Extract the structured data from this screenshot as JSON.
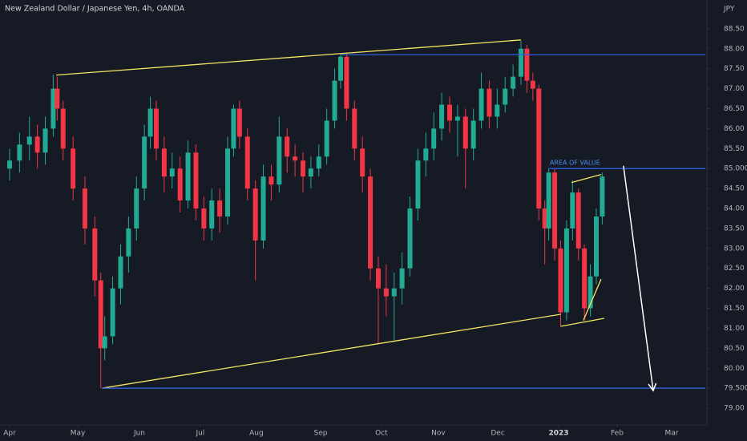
{
  "chart_data": {
    "type": "candlestick",
    "title": "New Zealand Dollar / Japanese Yen, 4h, OANDA",
    "currency": "JPY",
    "up_color": "#22ab94",
    "down_color": "#f23645",
    "xlim": [
      -4.85,
      351
    ],
    "ylim": [
      78.58,
      89.22
    ],
    "xticks": [
      {
        "value": 0,
        "label": "Apr"
      },
      {
        "value": 34.4,
        "label": "May"
      },
      {
        "value": 65.5,
        "label": "Jun"
      },
      {
        "value": 96.2,
        "label": "Jul"
      },
      {
        "value": 124.5,
        "label": "Aug"
      },
      {
        "value": 156.9,
        "label": "Sep"
      },
      {
        "value": 187.6,
        "label": "Oct"
      },
      {
        "value": 216.3,
        "label": "Nov"
      },
      {
        "value": 246.3,
        "label": "Dec"
      },
      {
        "value": 277,
        "label": "2023"
      },
      {
        "value": 306.5,
        "label": "Feb"
      },
      {
        "value": 334,
        "label": "Mar"
      }
    ],
    "yticks": [
      {
        "value": 79,
        "label": "79.00"
      },
      {
        "value": 79.5,
        "label": "79.500"
      },
      {
        "value": 80,
        "label": "80.00"
      },
      {
        "value": 80.5,
        "label": "80.50"
      },
      {
        "value": 81,
        "label": "81.00"
      },
      {
        "value": 81.5,
        "label": "81.50"
      },
      {
        "value": 82,
        "label": "82.00"
      },
      {
        "value": 82.5,
        "label": "82.50"
      },
      {
        "value": 83,
        "label": "83.00"
      },
      {
        "value": 83.5,
        "label": "83.50"
      },
      {
        "value": 84,
        "label": "84.00"
      },
      {
        "value": 84.5,
        "label": "84.50"
      },
      {
        "value": 85,
        "label": "85.000"
      },
      {
        "value": 85.5,
        "label": "85.50"
      },
      {
        "value": 86,
        "label": "86.00"
      },
      {
        "value": 86.5,
        "label": "86.50"
      },
      {
        "value": 87,
        "label": "87.00"
      },
      {
        "value": 87.5,
        "label": "87.50"
      },
      {
        "value": 88,
        "label": "88.00"
      },
      {
        "value": 88.5,
        "label": "88.50"
      }
    ],
    "x": [
      0,
      5,
      10,
      14,
      18,
      22,
      24,
      27,
      32,
      38,
      43,
      46,
      48,
      52,
      56,
      60,
      64,
      68,
      71,
      74,
      78,
      82,
      86,
      90,
      94,
      98,
      102,
      106,
      110,
      113,
      116,
      120,
      124,
      128,
      132,
      136,
      140,
      144,
      148,
      152,
      156,
      160,
      164,
      167,
      170,
      174,
      178,
      182,
      186,
      190,
      194,
      198,
      202,
      206,
      210,
      214,
      218,
      222,
      226,
      230,
      234,
      238,
      242,
      246,
      250,
      254,
      258,
      261,
      264,
      267,
      270,
      272,
      275,
      278,
      281,
      284,
      287,
      290,
      293,
      296,
      299
    ],
    "open": [
      85.0,
      85.2,
      85.6,
      85.8,
      85.4,
      86.0,
      87.0,
      86.5,
      85.5,
      84.5,
      83.5,
      82.2,
      80.5,
      80.8,
      82.0,
      82.8,
      83.5,
      84.5,
      85.8,
      86.5,
      85.5,
      84.8,
      85.0,
      84.2,
      85.4,
      84.0,
      83.5,
      84.2,
      83.8,
      85.5,
      86.5,
      85.8,
      84.5,
      83.2,
      84.8,
      84.6,
      85.8,
      85.3,
      85.2,
      84.8,
      85.0,
      85.3,
      86.2,
      87.2,
      87.8,
      86.5,
      85.5,
      84.8,
      82.5,
      82.0,
      81.8,
      82.0,
      82.5,
      84.0,
      85.2,
      85.5,
      86.0,
      86.6,
      86.2,
      86.3,
      85.5,
      86.2,
      87.0,
      86.3,
      86.6,
      87.0,
      87.3,
      88.0,
      87.2,
      87.0,
      84.0,
      83.5,
      84.9,
      83.0,
      81.4,
      83.5,
      84.4,
      83.0,
      81.5,
      82.3,
      83.8
    ],
    "high": [
      85.5,
      85.9,
      86.3,
      86.1,
      86.3,
      87.35,
      87.3,
      86.7,
      85.8,
      84.8,
      83.8,
      82.4,
      81.3,
      82.3,
      83.1,
      83.8,
      84.8,
      86.1,
      86.8,
      86.7,
      85.8,
      85.4,
      85.3,
      85.7,
      85.6,
      84.3,
      84.5,
      84.5,
      85.8,
      86.6,
      86.7,
      86.0,
      84.7,
      85.1,
      85.1,
      86.3,
      86.0,
      85.6,
      85.4,
      85.3,
      85.6,
      86.5,
      87.5,
      87.85,
      87.9,
      86.7,
      85.8,
      85.0,
      82.8,
      82.6,
      82.4,
      82.9,
      84.3,
      85.5,
      85.9,
      86.4,
      86.9,
      86.8,
      86.6,
      86.5,
      86.5,
      87.4,
      87.2,
      87.0,
      87.3,
      87.6,
      88.2,
      88.1,
      87.4,
      87.1,
      84.2,
      85.0,
      85.0,
      83.2,
      83.7,
      84.7,
      84.5,
      83.1,
      82.6,
      84.0,
      84.9
    ],
    "low": [
      84.7,
      84.9,
      85.2,
      85.0,
      85.1,
      85.8,
      86.2,
      85.2,
      84.2,
      83.1,
      81.8,
      79.5,
      80.2,
      80.6,
      81.6,
      82.4,
      83.2,
      84.2,
      85.5,
      85.2,
      84.4,
      84.5,
      83.9,
      84.0,
      83.7,
      83.2,
      83.2,
      83.4,
      83.6,
      85.3,
      85.5,
      84.2,
      82.2,
      83.0,
      84.2,
      84.4,
      84.9,
      84.8,
      84.4,
      84.5,
      84.8,
      85.1,
      86.0,
      87.0,
      86.2,
      85.2,
      84.4,
      82.2,
      80.6,
      81.3,
      80.7,
      81.6,
      82.3,
      83.7,
      84.8,
      85.2,
      85.7,
      85.9,
      85.3,
      84.5,
      85.2,
      86.0,
      86.0,
      86.0,
      86.4,
      86.8,
      87.1,
      86.9,
      86.7,
      83.7,
      82.6,
      83.2,
      82.7,
      81.05,
      81.2,
      83.2,
      82.7,
      81.2,
      81.3,
      82.1,
      83.6
    ],
    "close": [
      85.2,
      85.6,
      85.8,
      85.4,
      86.0,
      87.0,
      86.5,
      85.5,
      84.5,
      83.5,
      82.2,
      80.5,
      80.8,
      82.0,
      82.8,
      83.5,
      84.5,
      85.8,
      86.5,
      85.5,
      84.8,
      85.0,
      84.2,
      85.4,
      84.0,
      83.5,
      84.2,
      83.8,
      85.5,
      86.5,
      85.8,
      84.5,
      83.2,
      84.8,
      84.6,
      85.8,
      85.3,
      85.2,
      84.8,
      85.0,
      85.3,
      86.2,
      87.2,
      87.8,
      86.5,
      85.5,
      84.8,
      82.5,
      82.0,
      81.8,
      82.0,
      82.5,
      84.0,
      85.2,
      85.5,
      86.0,
      86.6,
      86.2,
      86.3,
      85.5,
      86.2,
      87.0,
      86.3,
      86.6,
      87.0,
      87.3,
      88.0,
      87.2,
      87.0,
      84.0,
      83.5,
      84.9,
      83.0,
      81.4,
      83.5,
      84.4,
      83.0,
      81.5,
      82.3,
      83.8,
      84.8
    ],
    "lines": [
      {
        "x": [
          23.5,
          258
        ],
        "y": [
          87.34,
          88.22
        ],
        "color": "#f5e663"
      },
      {
        "x": [
          46.5,
          278
        ],
        "y": [
          79.5,
          81.35
        ],
        "color": "#f5e663"
      },
      {
        "x": [
          278,
          300
        ],
        "y": [
          81.05,
          81.25
        ],
        "color": "#f5e663"
      },
      {
        "x": [
          283.5,
          298.4
        ],
        "y": [
          84.65,
          84.85
        ],
        "color": "#f5e663"
      },
      {
        "x": [
          289.5,
          298.4
        ],
        "y": [
          81.2,
          82.23
        ],
        "color": "#f5e663"
      },
      {
        "x": [
          167,
          351
        ],
        "y": [
          87.85,
          87.85
        ],
        "color": "#2f5ee0"
      },
      {
        "x": [
          46.5,
          351
        ],
        "y": [
          79.5,
          79.5
        ],
        "color": "#2f5ee0"
      },
      {
        "x": [
          272,
          351
        ],
        "y": [
          85.0,
          85.0
        ],
        "color": "#2f5ee0"
      }
    ],
    "arrow": {
      "x": [
        309.7,
        324.7
      ],
      "y": [
        85.07,
        79.44
      ],
      "color": "#ffffff"
    },
    "annotation": {
      "text": "AREA OF VALUE",
      "x": 272.5,
      "y": 85.0,
      "color": "#4a8ef0"
    }
  }
}
